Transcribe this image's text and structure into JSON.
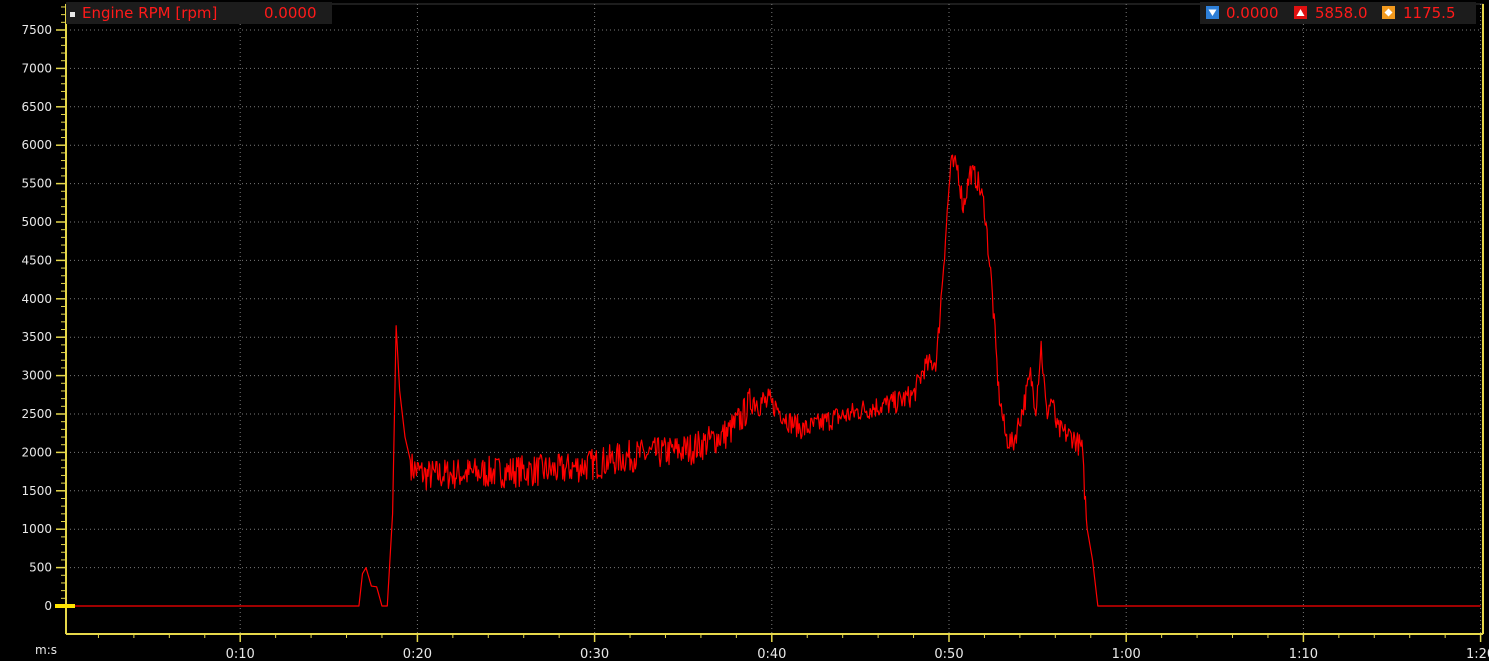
{
  "header": {
    "channel_label": "Engine RPM [rpm]",
    "cursor_value": "0.0000",
    "min_value": "0.0000",
    "max_value": "5858.0",
    "avg_value": "1175.5"
  },
  "colors": {
    "trace": "#ff0000",
    "grid": "#7a7a7a",
    "axis_line": "#e6d84a",
    "min_icon": "#2d7fd8",
    "max_icon": "#e01010",
    "avg_icon": "#f29a1e",
    "background": "#000000"
  },
  "chart_data": {
    "type": "line",
    "title": "",
    "xlabel": "m:s",
    "ylabel": "",
    "xlim_seconds": [
      0,
      80
    ],
    "ylim": [
      0,
      7800
    ],
    "x_ticks_seconds": [
      10,
      20,
      30,
      40,
      50,
      60,
      70,
      80
    ],
    "x_tick_labels": [
      "0:10",
      "0:20",
      "0:30",
      "0:40",
      "0:50",
      "1:00",
      "1:10",
      "1:20"
    ],
    "y_ticks": [
      0,
      500,
      1000,
      1500,
      2000,
      2500,
      3000,
      3500,
      4000,
      4500,
      5000,
      5500,
      6000,
      6500,
      7000,
      7500
    ],
    "y_tick_labels": [
      "0",
      "500",
      "1000",
      "1500",
      "2000",
      "2500",
      "3000",
      "3500",
      "4000",
      "4500",
      "5000",
      "5500",
      "6000",
      "6500",
      "7000",
      "7500"
    ],
    "grid": true,
    "series": [
      {
        "name": "Engine RPM [rpm]",
        "x": [
          0,
          16.7,
          16.9,
          17.1,
          17.4,
          17.7,
          18.0,
          18.3,
          18.6,
          18.8,
          19.0,
          19.3,
          19.7,
          20.5,
          22,
          24,
          26,
          28,
          30,
          32,
          34,
          35.5,
          36.5,
          37.5,
          38.3,
          38.9,
          39.5,
          40.2,
          41.0,
          41.8,
          42.5,
          43.5,
          44.5,
          45.0,
          46,
          47,
          48.0,
          48.6,
          49.3,
          49.8,
          50.1,
          50.5,
          50.8,
          51.2,
          51.6,
          52.0,
          52.4,
          52.8,
          53.2,
          53.6,
          54.2,
          54.6,
          54.9,
          55.2,
          55.5,
          55.8,
          56.1,
          56.5,
          57.0,
          57.5,
          57.8,
          58.1,
          58.4,
          80
        ],
        "y": [
          0,
          0,
          420,
          500,
          260,
          250,
          0,
          0,
          1200,
          3650,
          2800,
          2200,
          1800,
          1700,
          1720,
          1740,
          1760,
          1770,
          1850,
          1950,
          2000,
          2050,
          2150,
          2250,
          2450,
          2700,
          2650,
          2600,
          2400,
          2300,
          2350,
          2450,
          2500,
          2550,
          2600,
          2650,
          2750,
          3100,
          3200,
          4800,
          5750,
          5700,
          5200,
          5650,
          5550,
          5200,
          4200,
          2800,
          2200,
          2100,
          2600,
          3000,
          2600,
          3400,
          2500,
          2700,
          2300,
          2250,
          2200,
          2050,
          1000,
          600,
          0,
          0
        ]
      }
    ]
  }
}
